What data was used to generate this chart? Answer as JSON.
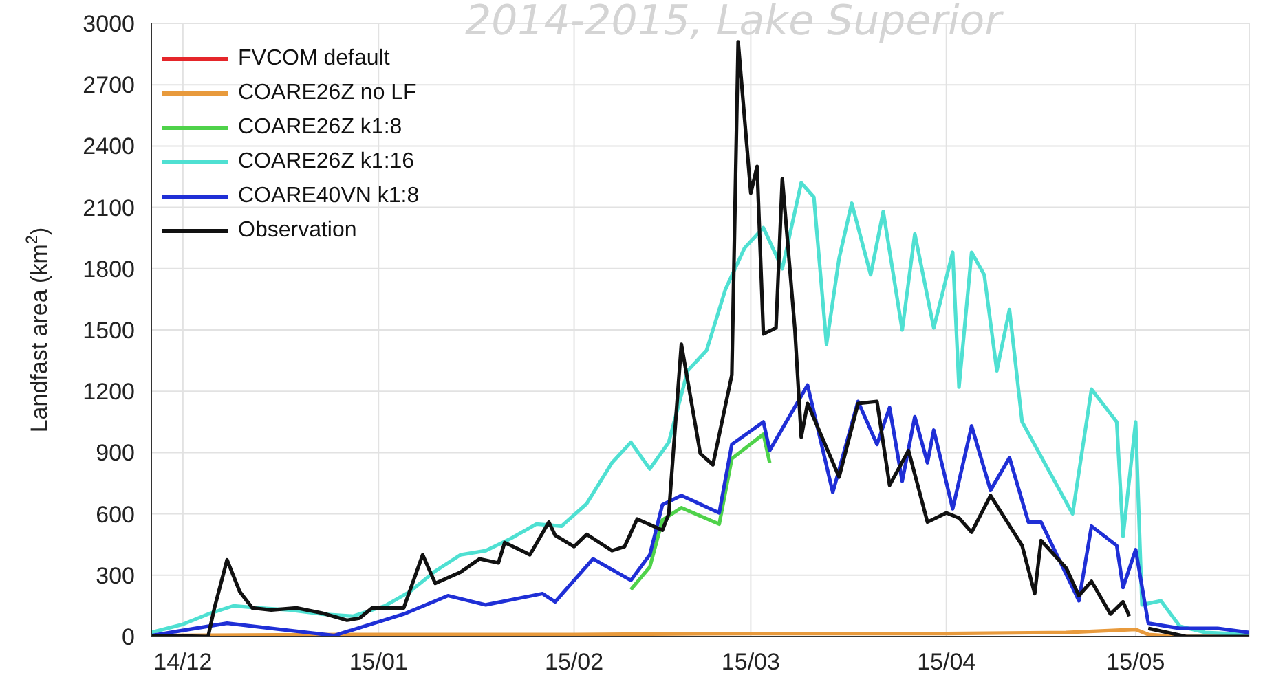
{
  "chart_data": {
    "type": "line",
    "title": "2014-2015, Lake Superior",
    "ylabel": "Landfast area (km$^{2}$)",
    "xlim": [
      "2014-11-26",
      "2015-05-19"
    ],
    "xticks": [
      {
        "value": "2014-12-01",
        "label": "14/12"
      },
      {
        "value": "2015-01-01",
        "label": "15/01"
      },
      {
        "value": "2015-02-01",
        "label": "15/02"
      },
      {
        "value": "2015-03-01",
        "label": "15/03"
      },
      {
        "value": "2015-04-01",
        "label": "15/04"
      },
      {
        "value": "2015-05-01",
        "label": "15/05"
      }
    ],
    "ylim": [
      0,
      3000
    ],
    "yticks": [
      0,
      300,
      600,
      900,
      1200,
      1500,
      1800,
      2100,
      2400,
      2700,
      3000
    ],
    "grid": true,
    "legend": "top left",
    "line_style": "solid",
    "series": [
      {
        "name": "FVCOM default",
        "color": "#e5262a"
      },
      {
        "name": "COARE26Z no LF",
        "color": "#e89a3c",
        "x": [
          "2014-11-26",
          "2015-01-01",
          "2015-02-01",
          "2015-03-01",
          "2015-04-01",
          "2015-04-20",
          "2015-05-01",
          "2015-05-03",
          "2015-05-08",
          "2015-05-19"
        ],
        "values": [
          5,
          10,
          10,
          15,
          15,
          20,
          35,
          10,
          0,
          0
        ]
      },
      {
        "name": "COARE26Z k1:8",
        "color": "#4fd24a",
        "x": [
          "2015-02-10",
          "2015-02-13",
          "2015-02-15",
          "2015-02-18",
          "2015-02-24",
          "2015-02-26",
          "2015-03-03",
          "2015-03-04"
        ],
        "values": [
          230,
          340,
          570,
          630,
          550,
          870,
          990,
          850
        ]
      },
      {
        "name": "COARE26Z k1:16",
        "color": "#4fe0d2",
        "x": [
          "2014-11-26",
          "2014-12-01",
          "2014-12-05",
          "2014-12-09",
          "2014-12-13",
          "2014-12-18",
          "2014-12-23",
          "2014-12-28",
          "2015-01-02",
          "2015-01-06",
          "2015-01-10",
          "2015-01-14",
          "2015-01-18",
          "2015-01-22",
          "2015-01-26",
          "2015-01-30",
          "2015-02-03",
          "2015-02-07",
          "2015-02-10",
          "2015-02-13",
          "2015-02-16",
          "2015-02-19",
          "2015-02-22",
          "2015-02-25",
          "2015-02-28",
          "2015-03-03",
          "2015-03-06",
          "2015-03-09",
          "2015-03-11",
          "2015-03-13",
          "2015-03-15",
          "2015-03-17",
          "2015-03-20",
          "2015-03-22",
          "2015-03-25",
          "2015-03-27",
          "2015-03-30",
          "2015-04-02",
          "2015-04-03",
          "2015-04-05",
          "2015-04-07",
          "2015-04-09",
          "2015-04-11",
          "2015-04-13",
          "2015-04-21",
          "2015-04-24",
          "2015-04-28",
          "2015-04-29",
          "2015-05-01",
          "2015-05-02",
          "2015-05-05",
          "2015-05-08",
          "2015-05-12",
          "2015-05-19"
        ],
        "values": [
          20,
          60,
          110,
          150,
          140,
          130,
          110,
          100,
          150,
          220,
          320,
          400,
          420,
          480,
          550,
          540,
          650,
          850,
          950,
          820,
          950,
          1300,
          1400,
          1700,
          1900,
          2000,
          1800,
          2220,
          2150,
          1430,
          1850,
          2120,
          1770,
          2080,
          1500,
          1970,
          1510,
          1880,
          1220,
          1880,
          1770,
          1300,
          1600,
          1050,
          600,
          1210,
          1050,
          490,
          1050,
          155,
          175,
          50,
          20,
          10
        ]
      },
      {
        "name": "COARE40VN k1:8",
        "color": "#1f2fd6",
        "x": [
          "2014-11-26",
          "2014-12-08",
          "2014-12-15",
          "2014-12-25",
          "2015-01-05",
          "2015-01-12",
          "2015-01-18",
          "2015-01-27",
          "2015-01-29",
          "2015-02-04",
          "2015-02-10",
          "2015-02-13",
          "2015-02-15",
          "2015-02-18",
          "2015-02-24",
          "2015-02-26",
          "2015-03-03",
          "2015-03-04",
          "2015-03-10",
          "2015-03-14",
          "2015-03-18",
          "2015-03-21",
          "2015-03-23",
          "2015-03-25",
          "2015-03-27",
          "2015-03-29",
          "2015-03-30",
          "2015-04-02",
          "2015-04-05",
          "2015-04-08",
          "2015-04-11",
          "2015-04-14",
          "2015-04-16",
          "2015-04-21",
          "2015-04-22",
          "2015-04-24",
          "2015-04-28",
          "2015-04-29",
          "2015-05-01",
          "2015-05-03",
          "2015-05-08",
          "2015-05-14",
          "2015-05-19"
        ],
        "values": [
          5,
          65,
          40,
          5,
          110,
          200,
          155,
          210,
          170,
          380,
          275,
          400,
          645,
          690,
          605,
          940,
          1050,
          910,
          1230,
          705,
          1150,
          940,
          1120,
          760,
          1075,
          850,
          1010,
          625,
          1030,
          715,
          875,
          560,
          560,
          240,
          175,
          540,
          445,
          240,
          425,
          65,
          40,
          40,
          20
        ]
      },
      {
        "name": "Observation",
        "color": "#111111",
        "x": [
          "2014-11-26",
          "2014-12-05",
          "2014-12-06",
          "2014-12-08",
          "2014-12-10",
          "2014-12-12",
          "2014-12-15",
          "2014-12-19",
          "2014-12-23",
          "2014-12-27",
          "2014-12-29",
          "2014-12-31",
          "2015-01-05",
          "2015-01-08",
          "2015-01-10",
          "2015-01-14",
          "2015-01-17",
          "2015-01-20",
          "2015-01-21",
          "2015-01-25",
          "2015-01-28",
          "2015-01-29",
          "2015-02-01",
          "2015-02-03",
          "2015-02-07",
          "2015-02-09",
          "2015-02-11",
          "2015-02-15",
          "2015-02-16",
          "2015-02-18",
          "2015-02-21",
          "2015-02-23",
          "2015-02-26",
          "2015-02-27",
          "2015-03-01",
          "2015-03-02",
          "2015-03-03",
          "2015-03-05",
          "2015-03-06",
          "2015-03-08",
          "2015-03-09",
          "2015-03-10",
          "2015-03-15",
          "2015-03-18",
          "2015-03-21",
          "2015-03-23",
          "2015-03-26",
          "2015-03-29",
          "2015-04-01",
          "2015-04-03",
          "2015-04-05",
          "2015-04-08",
          "2015-04-13",
          "2015-04-15",
          "2015-04-16",
          "2015-04-20",
          "2015-04-22",
          "2015-04-24",
          "2015-04-27",
          "2015-04-29",
          "2015-04-30",
          "2015-05-01",
          "2015-05-03",
          "2015-05-09",
          "2015-05-19"
        ],
        "values": [
          5,
          0,
          140,
          375,
          220,
          140,
          130,
          140,
          115,
          80,
          90,
          140,
          140,
          400,
          260,
          315,
          380,
          360,
          460,
          400,
          560,
          495,
          440,
          500,
          420,
          440,
          575,
          520,
          600,
          1430,
          895,
          840,
          1280,
          2910,
          2170,
          2300,
          1480,
          1510,
          2240,
          1500,
          975,
          1140,
          780,
          1140,
          1150,
          740,
          910,
          560,
          605,
          580,
          510,
          690,
          445,
          210,
          470,
          335,
          200,
          270,
          110,
          170,
          100,
          null,
          40,
          0,
          0
        ]
      }
    ]
  }
}
